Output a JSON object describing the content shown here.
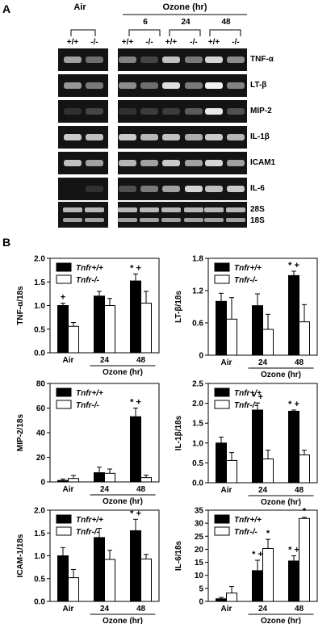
{
  "panel_a": {
    "panel_letter": "A",
    "air_label": "Air",
    "ozone_label": "Ozone (hr)",
    "timepoints": [
      "6",
      "24",
      "48"
    ],
    "genotype_plus": "+/+",
    "genotype_minus": "-/-",
    "genes": [
      "TNF-α",
      "LT-β",
      "MIP-2",
      "IL-1β",
      "ICAM1",
      "IL-6"
    ],
    "rrna_labels": [
      "28S",
      "18S"
    ]
  },
  "panel_b": {
    "panel_letter": "B",
    "legend": {
      "wt": "Tnfr+/+",
      "ko": "Tnfr-/-"
    },
    "wt_color": "#000000",
    "ko_color": "#ffffff",
    "categories": [
      "Air",
      "24",
      "48"
    ],
    "ozone_label": "Ozone (hr)"
  },
  "chart_data": [
    {
      "type": "bar",
      "ylabel": "TNF-α/18s",
      "categories": [
        "Air",
        "24",
        "48"
      ],
      "ylim": [
        0,
        2.0
      ],
      "yticks": [
        "0.0",
        "0.5",
        "1.0",
        "1.5",
        "2.0"
      ],
      "series": [
        {
          "name": "Tnfr+/+",
          "values": [
            1.0,
            1.2,
            1.52
          ],
          "errors": [
            0.05,
            0.1,
            0.15
          ]
        },
        {
          "name": "Tnfr-/-",
          "values": [
            0.56,
            1.0,
            1.05
          ],
          "errors": [
            0.08,
            0.15,
            0.25
          ]
        }
      ],
      "annotations": [
        {
          "category": "Air",
          "series": "Tnfr+/+",
          "text": "+"
        },
        {
          "category": "48",
          "series": "Tnfr+/+",
          "text": "* +"
        }
      ]
    },
    {
      "type": "bar",
      "ylabel": "LT-β/18s",
      "categories": [
        "Air",
        "24",
        "48"
      ],
      "ylim": [
        0,
        1.8
      ],
      "yticks": [
        "0",
        "0.6",
        "1.2",
        "1.8"
      ],
      "series": [
        {
          "name": "Tnfr+/+",
          "values": [
            1.0,
            0.92,
            1.48
          ],
          "errors": [
            0.15,
            0.22,
            0.08
          ]
        },
        {
          "name": "Tnfr-/-",
          "values": [
            0.67,
            0.48,
            0.62
          ],
          "errors": [
            0.4,
            0.28,
            0.32
          ]
        }
      ],
      "annotations": [
        {
          "category": "48",
          "series": "Tnfr+/+",
          "text": "* +"
        }
      ]
    },
    {
      "type": "bar",
      "ylabel": "MIP-2/18s",
      "categories": [
        "Air",
        "24",
        "48"
      ],
      "ylim": [
        0,
        80
      ],
      "yticks": [
        "0",
        "20",
        "40",
        "60",
        "80"
      ],
      "series": [
        {
          "name": "Tnfr+/+",
          "values": [
            1.2,
            7.5,
            53
          ],
          "errors": [
            1.2,
            4.5,
            7
          ]
        },
        {
          "name": "Tnfr-/-",
          "values": [
            2.8,
            7.0,
            3.5
          ],
          "errors": [
            2.5,
            3.5,
            2
          ]
        }
      ],
      "annotations": [
        {
          "category": "48",
          "series": "Tnfr+/+",
          "text": "* +"
        }
      ]
    },
    {
      "type": "bar",
      "ylabel": "IL-1β/18s",
      "categories": [
        "Air",
        "24",
        "48"
      ],
      "ylim": [
        0,
        2.5
      ],
      "yticks": [
        "0.0",
        "0.5",
        "1.0",
        "1.5",
        "2.0",
        "2.5"
      ],
      "series": [
        {
          "name": "Tnfr+/+",
          "values": [
            1.0,
            1.83,
            1.8
          ],
          "errors": [
            0.15,
            0.18,
            0.03
          ]
        },
        {
          "name": "Tnfr-/-",
          "values": [
            0.56,
            0.6,
            0.7
          ],
          "errors": [
            0.2,
            0.22,
            0.12
          ]
        }
      ],
      "annotations": [
        {
          "category": "24",
          "series": "Tnfr+/+",
          "text": "* +"
        },
        {
          "category": "48",
          "series": "Tnfr+/+",
          "text": "* +"
        }
      ]
    },
    {
      "type": "bar",
      "ylabel": "ICAM-1/18s",
      "categories": [
        "Air",
        "24",
        "48"
      ],
      "ylim": [
        0,
        2.0
      ],
      "yticks": [
        "0.0",
        "0.5",
        "1.0",
        "1.5",
        "2.0"
      ],
      "series": [
        {
          "name": "Tnfr+/+",
          "values": [
            1.0,
            1.4,
            1.55
          ],
          "errors": [
            0.18,
            0.2,
            0.25
          ]
        },
        {
          "name": "Tnfr-/-",
          "values": [
            0.52,
            0.92,
            0.93
          ],
          "errors": [
            0.18,
            0.2,
            0.1
          ]
        }
      ],
      "annotations": [
        {
          "category": "48",
          "series": "Tnfr+/+",
          "text": "* +"
        }
      ]
    },
    {
      "type": "bar",
      "ylabel": "IL-6/18s",
      "categories": [
        "Air",
        "24",
        "48"
      ],
      "ylim": [
        0,
        35
      ],
      "yticks": [
        "0",
        "5",
        "10",
        "15",
        "20",
        "25",
        "30",
        "35"
      ],
      "series": [
        {
          "name": "Tnfr+/+",
          "values": [
            1.0,
            11.8,
            15.5
          ],
          "errors": [
            0.5,
            4,
            2
          ]
        },
        {
          "name": "Tnfr-/-",
          "values": [
            3.2,
            20.3,
            31.8
          ],
          "errors": [
            2.5,
            3.5,
            0.5
          ]
        }
      ],
      "annotations": [
        {
          "category": "24",
          "series": "Tnfr+/+",
          "text": "* +"
        },
        {
          "category": "48",
          "series": "Tnfr+/+",
          "text": "* +"
        },
        {
          "category": "24",
          "series": "Tnfr-/-",
          "text": "*"
        },
        {
          "category": "48",
          "series": "Tnfr-/-",
          "text": "*"
        }
      ]
    }
  ]
}
